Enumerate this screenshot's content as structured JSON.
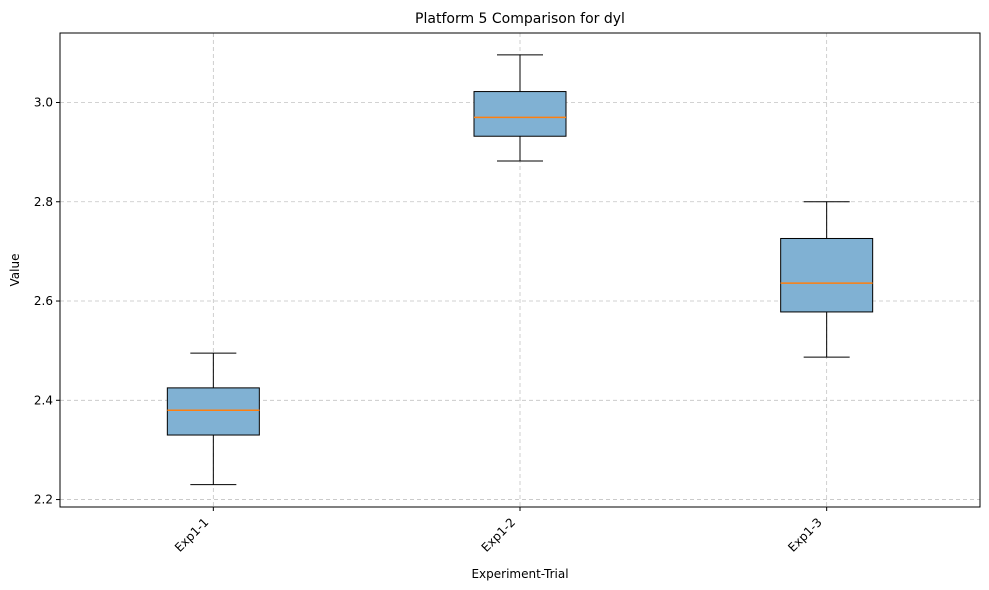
{
  "chart_data": {
    "type": "box",
    "title": "Platform 5 Comparison for dyl",
    "xlabel": "Experiment-Trial",
    "ylabel": "Value",
    "ylim": [
      2.185,
      3.14
    ],
    "yticks": [
      2.2,
      2.4,
      2.6,
      2.8,
      3.0
    ],
    "ytick_labels": [
      "2.2",
      "2.4",
      "2.6",
      "2.8",
      "3.0"
    ],
    "categories": [
      "Exp1-1",
      "Exp1-2",
      "Exp1-3"
    ],
    "grid": true,
    "boxes": [
      {
        "whisker_low": 2.23,
        "q1": 2.33,
        "median": 2.38,
        "q3": 2.425,
        "whisker_high": 2.495
      },
      {
        "whisker_low": 2.882,
        "q1": 2.932,
        "median": 2.97,
        "q3": 3.022,
        "whisker_high": 3.096
      },
      {
        "whisker_low": 2.487,
        "q1": 2.578,
        "median": 2.636,
        "q3": 2.726,
        "whisker_high": 2.8
      }
    ],
    "colors": {
      "box_fill": "#80b1d3",
      "box_edge": "#000000",
      "median": "#ff7f0e",
      "whisker": "#000000",
      "grid": "#b0b0b0"
    }
  }
}
